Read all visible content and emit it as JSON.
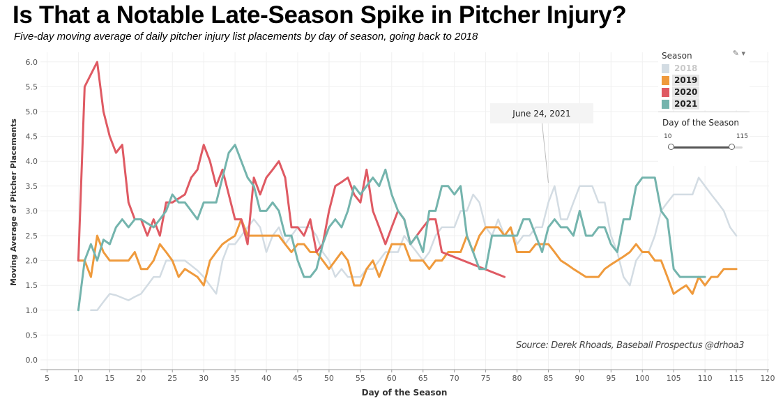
{
  "title": "Is That a Notable Late-Season Spike in Pitcher Injury?",
  "subtitle": "Five-day moving average of daily pitcher injury list placements by day of season, going back to 2018",
  "source": "Source: Derek Rhoads, Baseball Prospectus @drhoa3",
  "tooltip": "June 24, 2021",
  "legend": {
    "title": "Season",
    "control_icon": "pen-dropdown-icon",
    "items": [
      {
        "label": "2018",
        "color": "#d3dce3",
        "state": "dim"
      },
      {
        "label": "2019",
        "color": "#ef9a3c",
        "state": "on"
      },
      {
        "label": "2020",
        "color": "#df5a63",
        "state": "on"
      },
      {
        "label": "2021",
        "color": "#74b4ad",
        "state": "on"
      }
    ]
  },
  "slider": {
    "title": "Day of the Season",
    "min_label": "10",
    "max_label": "115",
    "min_value": 10,
    "max_value": 115,
    "range_min": 5,
    "range_max": 120
  },
  "chart_data": {
    "type": "line",
    "xlabel": "Day of the Season",
    "ylabel": "Moving Average of Pitcher Placements",
    "xlim": [
      5,
      121
    ],
    "ylim": [
      0,
      6.2
    ],
    "xticks": [
      5,
      10,
      15,
      20,
      25,
      30,
      35,
      40,
      45,
      50,
      55,
      60,
      65,
      70,
      75,
      80,
      85,
      90,
      95,
      100,
      105,
      110,
      115,
      120
    ],
    "yticks": [
      0.0,
      0.5,
      1.0,
      1.5,
      2.0,
      2.5,
      3.0,
      3.5,
      4.0,
      4.5,
      5.0,
      5.5,
      6.0
    ],
    "grid": true,
    "legend_position": "top-right",
    "series": [
      {
        "name": "2018",
        "color": "#d3dce3",
        "x": [
          12,
          13,
          14,
          15,
          16,
          17,
          18,
          19,
          20,
          21,
          22,
          23,
          24,
          25,
          26,
          27,
          28,
          29,
          30,
          31,
          32,
          33,
          34,
          35,
          36,
          37,
          38,
          39,
          40,
          41,
          42,
          43,
          44,
          45,
          46,
          47,
          48,
          49,
          50,
          51,
          52,
          53,
          54,
          55,
          56,
          57,
          58,
          59,
          60,
          61,
          62,
          63,
          64,
          65,
          66,
          67,
          68,
          69,
          70,
          71,
          72,
          73,
          74,
          75,
          76,
          77,
          78,
          79,
          80,
          81,
          82,
          83,
          84,
          85,
          86,
          87,
          88,
          89,
          90,
          91,
          92,
          93,
          94,
          95,
          96,
          97,
          98,
          99,
          100,
          101,
          102,
          103,
          104,
          105,
          106,
          107,
          108,
          109,
          110,
          111,
          112,
          113,
          114,
          115
        ],
        "y": [
          1.0,
          1.0,
          1.17,
          1.33,
          1.3,
          1.25,
          1.2,
          1.27,
          1.33,
          1.5,
          1.67,
          1.67,
          2.0,
          2.0,
          2.0,
          2.0,
          1.9,
          1.8,
          1.67,
          1.5,
          1.33,
          2.0,
          2.33,
          2.33,
          2.5,
          2.67,
          2.83,
          2.67,
          2.17,
          2.5,
          2.67,
          2.33,
          2.5,
          2.67,
          2.67,
          2.67,
          2.5,
          2.17,
          2.0,
          1.67,
          1.83,
          1.67,
          1.67,
          1.67,
          1.83,
          1.83,
          2.0,
          2.17,
          2.17,
          2.17,
          2.5,
          2.33,
          2.17,
          2.0,
          2.17,
          2.5,
          2.67,
          2.67,
          2.67,
          3.0,
          3.0,
          3.33,
          3.17,
          2.67,
          2.5,
          2.83,
          2.5,
          2.67,
          2.33,
          2.5,
          2.5,
          2.67,
          2.67,
          3.17,
          3.5,
          2.83,
          2.83,
          3.17,
          3.5,
          3.5,
          3.5,
          3.17,
          3.17,
          2.5,
          2.17,
          1.67,
          1.5,
          2.0,
          2.17,
          2.17,
          2.5,
          3.0,
          3.17,
          3.33,
          3.33,
          3.33,
          3.33,
          3.67,
          3.5,
          3.33,
          3.17,
          3.0,
          2.67,
          2.5
        ]
      },
      {
        "name": "2019",
        "color": "#ef9a3c",
        "x": [
          10,
          11,
          12,
          13,
          14,
          15,
          16,
          17,
          18,
          19,
          20,
          21,
          22,
          23,
          24,
          25,
          26,
          27,
          28,
          29,
          30,
          31,
          32,
          33,
          34,
          35,
          36,
          37,
          38,
          39,
          40,
          41,
          42,
          43,
          44,
          45,
          46,
          47,
          48,
          49,
          50,
          51,
          52,
          53,
          54,
          55,
          56,
          57,
          58,
          59,
          60,
          61,
          62,
          63,
          64,
          65,
          66,
          67,
          68,
          69,
          70,
          71,
          72,
          73,
          74,
          75,
          76,
          77,
          78,
          79,
          80,
          81,
          82,
          83,
          84,
          85,
          86,
          87,
          88,
          89,
          90,
          91,
          92,
          93,
          94,
          95,
          96,
          97,
          98,
          99,
          100,
          101,
          102,
          103,
          104,
          105,
          106,
          107,
          108,
          109,
          110,
          111,
          112,
          113,
          114,
          115
        ],
        "y": [
          2.0,
          2.0,
          1.67,
          2.5,
          2.17,
          2.0,
          2.0,
          2.0,
          2.0,
          2.17,
          1.83,
          1.83,
          2.0,
          2.33,
          2.17,
          2.0,
          1.67,
          1.83,
          1.75,
          1.67,
          1.5,
          2.0,
          2.17,
          2.33,
          2.42,
          2.5,
          2.83,
          2.5,
          2.5,
          2.5,
          2.5,
          2.5,
          2.5,
          2.33,
          2.17,
          2.33,
          2.33,
          2.17,
          2.17,
          2.0,
          1.83,
          2.0,
          2.17,
          2.0,
          1.5,
          1.5,
          1.83,
          2.0,
          1.67,
          2.0,
          2.33,
          2.33,
          2.33,
          2.0,
          2.0,
          2.0,
          1.83,
          2.0,
          2.0,
          2.17,
          2.17,
          2.17,
          2.5,
          2.17,
          2.5,
          2.67,
          2.67,
          2.67,
          2.5,
          2.67,
          2.17,
          2.17,
          2.17,
          2.33,
          2.33,
          2.33,
          2.17,
          2.0,
          1.92,
          1.83,
          1.75,
          1.67,
          1.67,
          1.67,
          1.83,
          1.92,
          2.0,
          2.08,
          2.17,
          2.33,
          2.17,
          2.17,
          2.0,
          2.0,
          1.67,
          1.33,
          1.42,
          1.5,
          1.33,
          1.67,
          1.5,
          1.67,
          1.67,
          1.83,
          1.83,
          1.83
        ]
      },
      {
        "name": "2020",
        "color": "#df5a63",
        "x": [
          10,
          11,
          12,
          13,
          14,
          15,
          16,
          17,
          18,
          19,
          20,
          21,
          22,
          23,
          24,
          25,
          26,
          27,
          28,
          29,
          30,
          31,
          32,
          33,
          34,
          35,
          36,
          37,
          38,
          39,
          40,
          41,
          42,
          43,
          44,
          45,
          46,
          47,
          48,
          49,
          50,
          51,
          52,
          53,
          54,
          55,
          56,
          57,
          58,
          59,
          60,
          61,
          62,
          63,
          64,
          65,
          66,
          67,
          68,
          78
        ],
        "y": [
          2.0,
          5.5,
          5.75,
          6.0,
          5.0,
          4.5,
          4.17,
          4.33,
          3.17,
          2.83,
          2.83,
          2.5,
          2.83,
          2.5,
          3.17,
          3.17,
          3.25,
          3.33,
          3.67,
          3.83,
          4.33,
          4.0,
          3.5,
          3.83,
          3.33,
          2.83,
          2.83,
          2.33,
          3.67,
          3.33,
          3.67,
          3.83,
          4.0,
          3.67,
          2.67,
          2.67,
          2.5,
          2.83,
          2.17,
          2.33,
          3.0,
          3.5,
          3.58,
          3.67,
          3.33,
          3.17,
          3.83,
          3.0,
          2.67,
          2.33,
          2.67,
          3.0,
          2.83,
          2.33,
          2.5,
          2.67,
          2.83,
          2.83,
          2.17,
          1.67
        ]
      },
      {
        "name": "2021",
        "color": "#74b4ad",
        "x": [
          10,
          11,
          12,
          13,
          14,
          15,
          16,
          17,
          18,
          19,
          20,
          21,
          22,
          23,
          24,
          25,
          26,
          27,
          28,
          29,
          30,
          31,
          32,
          33,
          34,
          35,
          36,
          37,
          38,
          39,
          40,
          41,
          42,
          43,
          44,
          45,
          46,
          47,
          48,
          49,
          50,
          51,
          52,
          53,
          54,
          55,
          56,
          57,
          58,
          59,
          60,
          61,
          62,
          63,
          64,
          65,
          66,
          67,
          68,
          69,
          70,
          71,
          72,
          73,
          74,
          75,
          76,
          77,
          78,
          79,
          80,
          81,
          82,
          83,
          84,
          85,
          86,
          87,
          88,
          89,
          90,
          91,
          92,
          93,
          94,
          95,
          96,
          97,
          98,
          99,
          100,
          101,
          102,
          103,
          104,
          105,
          106,
          107,
          108,
          109,
          110
        ],
        "y": [
          1.0,
          2.0,
          2.33,
          2.0,
          2.42,
          2.33,
          2.67,
          2.83,
          2.67,
          2.83,
          2.83,
          2.75,
          2.67,
          2.83,
          3.0,
          3.33,
          3.17,
          3.17,
          3.0,
          2.83,
          3.17,
          3.17,
          3.17,
          3.67,
          4.17,
          4.33,
          4.0,
          3.67,
          3.5,
          3.0,
          3.0,
          3.17,
          3.0,
          2.5,
          2.5,
          2.0,
          1.67,
          1.67,
          1.83,
          2.33,
          2.67,
          2.83,
          2.67,
          3.0,
          3.5,
          3.33,
          3.5,
          3.67,
          3.5,
          3.83,
          3.33,
          3.0,
          2.83,
          2.33,
          2.5,
          2.17,
          3.0,
          3.0,
          3.5,
          3.5,
          3.33,
          3.5,
          2.5,
          2.17,
          1.83,
          1.83,
          2.5,
          2.5,
          2.5,
          2.5,
          2.5,
          2.83,
          2.83,
          2.5,
          2.17,
          2.67,
          2.83,
          2.67,
          2.67,
          2.5,
          3.0,
          2.5,
          2.5,
          2.67,
          2.67,
          2.33,
          2.17,
          2.83,
          2.83,
          3.5,
          3.67,
          3.67,
          3.67,
          3.0,
          2.83,
          1.83,
          1.67,
          1.67,
          1.67,
          1.67,
          1.67
        ]
      }
    ],
    "annotation": {
      "text": "June 24, 2021",
      "x": 85
    }
  }
}
